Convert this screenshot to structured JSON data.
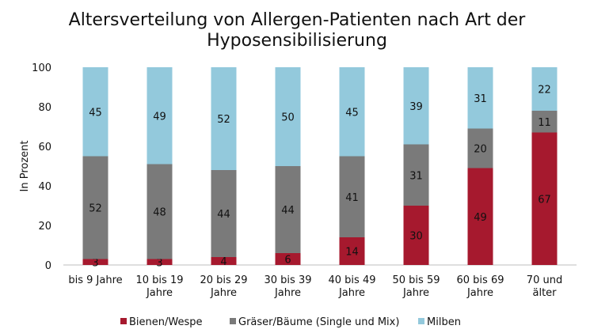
{
  "chart_data": {
    "type": "bar",
    "stacked": true,
    "title": "Altersverteilung von Allergen-Patienten nach Art der Hyposensibilisierung",
    "title_lines": [
      "Altersverteilung von Allergen-Patienten nach Art der",
      "Hyposensibilisierung"
    ],
    "ylabel": "In Prozent",
    "xlabel": "",
    "ylim": [
      0,
      100
    ],
    "yticks": [
      0,
      20,
      40,
      60,
      80,
      100
    ],
    "grid": false,
    "legend": "bottom",
    "categories": [
      "bis 9 Jahre",
      "10 bis 19 Jahre",
      "20 bis 29 Jahre",
      "30 bis 39 Jahre",
      "40 bis 49 Jahre",
      "50 bis 59 Jahre",
      "60 bis 69 Jahre",
      "70 und älter"
    ],
    "category_lines": [
      [
        "bis 9 Jahre"
      ],
      [
        "10 bis 19",
        "Jahre"
      ],
      [
        "20 bis 29",
        "Jahre"
      ],
      [
        "30 bis 39",
        "Jahre"
      ],
      [
        "40 bis 49",
        "Jahre"
      ],
      [
        "50 bis 59",
        "Jahre"
      ],
      [
        "60 bis 69",
        "Jahre"
      ],
      [
        "70 und",
        "älter"
      ]
    ],
    "series": [
      {
        "name": "Bienen/Wespe",
        "color": "#a6192e",
        "values": [
          3,
          3,
          4,
          6,
          14,
          30,
          49,
          67
        ]
      },
      {
        "name": "Gräser/Bäume (Single und Mix)",
        "color": "#7a7a7a",
        "values": [
          52,
          48,
          44,
          44,
          41,
          31,
          20,
          11
        ]
      },
      {
        "name": "Milben",
        "color": "#93c9dc",
        "values": [
          45,
          49,
          52,
          50,
          45,
          39,
          31,
          22
        ]
      }
    ]
  }
}
